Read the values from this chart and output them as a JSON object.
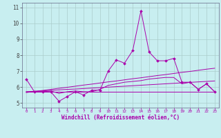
{
  "xlabel": "Windchill (Refroidissement éolien,°C)",
  "ylabel": "",
  "xlim": [
    -0.5,
    23.5
  ],
  "ylim": [
    4.7,
    11.3
  ],
  "yticks": [
    5,
    6,
    7,
    8,
    9,
    10,
    11
  ],
  "xticks": [
    0,
    1,
    2,
    3,
    4,
    5,
    6,
    7,
    8,
    9,
    10,
    11,
    12,
    13,
    14,
    15,
    16,
    17,
    18,
    19,
    20,
    21,
    22,
    23
  ],
  "bg_color": "#c8eef0",
  "line_color": "#aa00aa",
  "grid_color": "#aacccc",
  "series": {
    "main": [
      6.5,
      5.7,
      5.7,
      5.7,
      5.1,
      5.4,
      5.7,
      5.5,
      5.8,
      5.8,
      7.0,
      7.7,
      7.5,
      8.3,
      10.8,
      8.2,
      7.65,
      7.65,
      7.8,
      6.3,
      6.3,
      5.85,
      6.2,
      5.7
    ],
    "flat": [
      5.72,
      5.72,
      5.72,
      5.72,
      5.72,
      5.72,
      5.72,
      5.72,
      5.72,
      5.72,
      5.72,
      5.72,
      5.72,
      5.72,
      5.72,
      5.72,
      5.72,
      5.72,
      5.72,
      5.72,
      5.72,
      5.72,
      5.72,
      5.72
    ],
    "trend_steep": [
      5.65,
      5.72,
      5.78,
      5.85,
      5.92,
      5.98,
      6.05,
      6.12,
      6.18,
      6.25,
      6.32,
      6.38,
      6.45,
      6.52,
      6.58,
      6.65,
      6.72,
      6.78,
      6.85,
      6.92,
      6.98,
      7.05,
      7.12,
      7.18
    ],
    "trend_gentle": [
      5.7,
      5.73,
      5.76,
      5.79,
      5.82,
      5.85,
      5.87,
      5.9,
      5.93,
      5.96,
      5.99,
      6.02,
      6.05,
      6.08,
      6.11,
      6.14,
      6.17,
      6.2,
      6.23,
      6.26,
      6.29,
      6.32,
      6.35,
      6.38
    ],
    "mid": [
      5.7,
      5.7,
      5.7,
      5.75,
      5.6,
      5.7,
      5.75,
      5.7,
      5.7,
      5.85,
      6.1,
      6.2,
      6.3,
      6.35,
      6.4,
      6.5,
      6.55,
      6.6,
      6.6,
      6.2,
      6.3,
      5.85,
      6.2,
      5.7
    ]
  }
}
